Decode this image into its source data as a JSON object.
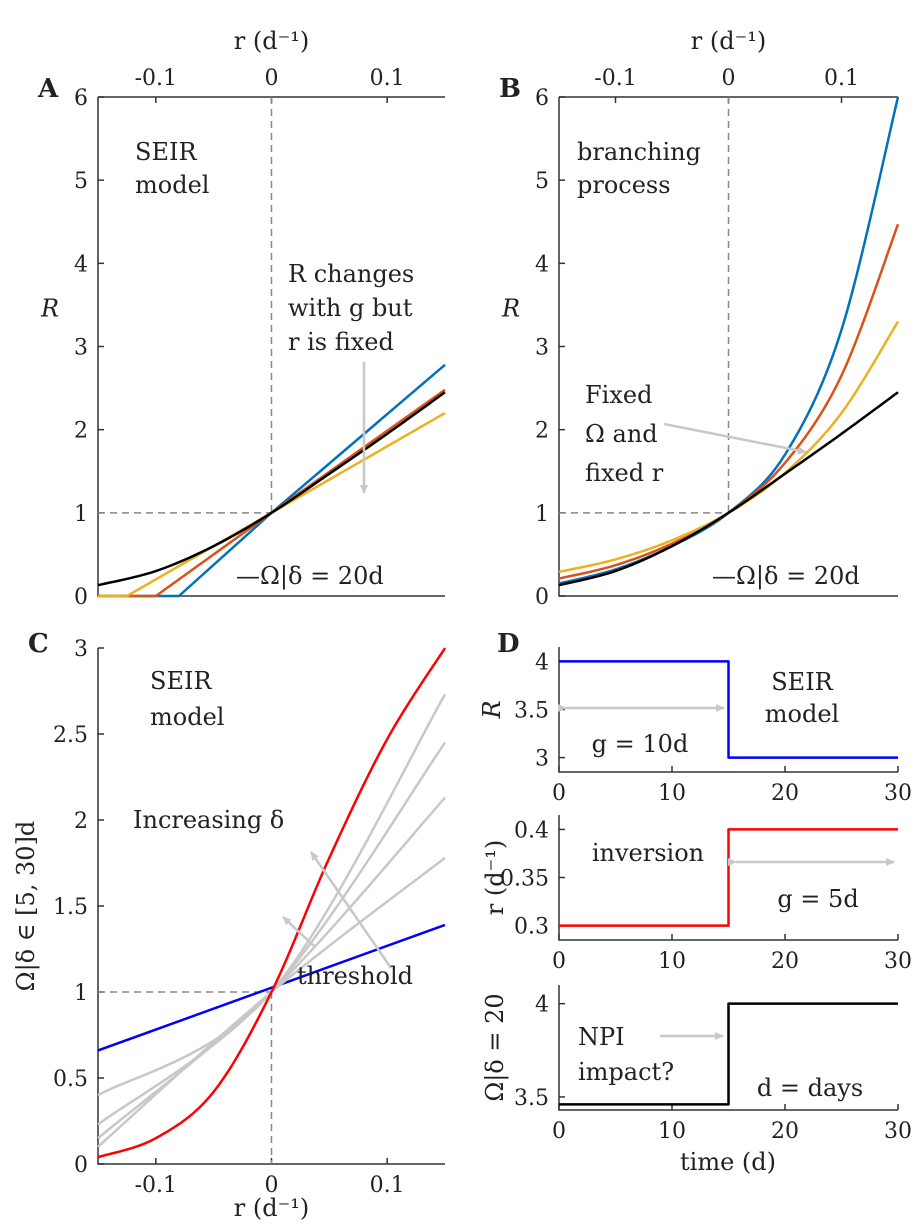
{
  "chart_data": [
    {
      "type": "line",
      "panel_label": "A",
      "top_axis_label": "r (d⁻¹)",
      "ylabel": "R",
      "xlim": [
        -0.15,
        0.15
      ],
      "ylim": [
        0,
        6
      ],
      "x_ticks": [
        "-0.1",
        "0",
        "0.1"
      ],
      "y_ticks": [
        "0",
        "1",
        "2",
        "3",
        "4",
        "5",
        "6"
      ],
      "annotations": [
        "SEIR",
        "model",
        "R changes",
        "with g but",
        "r is fixed",
        "—Ω|δ = 20d"
      ],
      "colors": [
        "#0072BD",
        "#D95319",
        "#EDB120",
        "#000000"
      ],
      "series": [
        {
          "color": "#0072BD",
          "x": [
            -0.15,
            -0.08,
            0,
            0.15
          ],
          "y": [
            0,
            0,
            1,
            2.78
          ]
        },
        {
          "color": "#D95319",
          "x": [
            -0.15,
            -0.1,
            0,
            0.15
          ],
          "y": [
            0,
            0,
            1,
            2.48
          ]
        },
        {
          "color": "#EDB120",
          "x": [
            -0.15,
            -0.125,
            0,
            0.15
          ],
          "y": [
            0,
            0,
            1,
            2.2
          ]
        },
        {
          "color": "#000000",
          "x": [
            -0.15,
            -0.1,
            -0.05,
            0,
            0.05,
            0.1,
            0.15
          ],
          "y": [
            0.13,
            0.3,
            0.6,
            1,
            1.47,
            1.95,
            2.45
          ]
        }
      ]
    },
    {
      "type": "line",
      "panel_label": "B",
      "top_axis_label": "r (d⁻¹)",
      "ylabel": "R",
      "xlim": [
        -0.15,
        0.15
      ],
      "ylim": [
        0,
        6
      ],
      "x_ticks": [
        "-0.1",
        "0",
        "0.1"
      ],
      "y_ticks": [
        "0",
        "1",
        "2",
        "3",
        "4",
        "5",
        "6"
      ],
      "annotations": [
        "branching",
        "process",
        "Fixed",
        "Ω and",
        "fixed r",
        "—Ω|δ = 20d"
      ],
      "colors": [
        "#0072BD",
        "#D95319",
        "#EDB120",
        "#000000"
      ],
      "series": [
        {
          "color": "#0072BD",
          "x": [
            -0.15,
            -0.1,
            -0.05,
            0,
            0.05,
            0.1,
            0.15
          ],
          "y": [
            0.15,
            0.32,
            0.6,
            1,
            1.7,
            3.2,
            6.0
          ]
        },
        {
          "color": "#D95319",
          "x": [
            -0.15,
            -0.1,
            -0.05,
            0,
            0.05,
            0.1,
            0.15
          ],
          "y": [
            0.21,
            0.37,
            0.63,
            1,
            1.6,
            2.65,
            4.47
          ]
        },
        {
          "color": "#EDB120",
          "x": [
            -0.15,
            -0.1,
            -0.05,
            0,
            0.05,
            0.1,
            0.15
          ],
          "y": [
            0.29,
            0.44,
            0.67,
            1,
            1.48,
            2.2,
            3.3
          ]
        },
        {
          "color": "#000000",
          "x": [
            -0.15,
            -0.1,
            -0.05,
            0,
            0.05,
            0.1,
            0.15
          ],
          "y": [
            0.13,
            0.3,
            0.6,
            1,
            1.47,
            1.95,
            2.45
          ]
        }
      ]
    },
    {
      "type": "line",
      "panel_label": "C",
      "xlabel": "r (d⁻¹)",
      "ylabel": "Ω|δ ∈ [5, 30]d",
      "xlim": [
        -0.15,
        0.15
      ],
      "ylim": [
        0,
        3
      ],
      "x_ticks": [
        "-0.1",
        "0",
        "0.1"
      ],
      "y_ticks": [
        "0",
        "0.5",
        "1",
        "1.5",
        "2",
        "2.5",
        "3"
      ],
      "annotations": [
        "SEIR",
        "model",
        "Increasing δ",
        "threshold"
      ],
      "colors": [
        "#0000FF",
        "#FF0000",
        "#C8C8C8"
      ],
      "series": [
        {
          "color": "#0000FF",
          "x": [
            -0.15,
            0.15
          ],
          "y": [
            0.66,
            1.39
          ]
        },
        {
          "color": "#C8C8C8",
          "x": [
            -0.15,
            0,
            0.15
          ],
          "y": [
            0.4,
            1,
            2.73
          ]
        },
        {
          "color": "#C8C8C8",
          "x": [
            -0.15,
            0,
            0.15
          ],
          "y": [
            0.23,
            1,
            2.45
          ]
        },
        {
          "color": "#C8C8C8",
          "x": [
            -0.15,
            0,
            0.15
          ],
          "y": [
            0.15,
            1,
            2.13
          ]
        },
        {
          "color": "#C8C8C8",
          "x": [
            -0.15,
            0,
            0.15
          ],
          "y": [
            0.1,
            1,
            1.78
          ]
        },
        {
          "color": "#FF0000",
          "x": [
            -0.15,
            -0.1,
            -0.05,
            0,
            0.05,
            0.1,
            0.15
          ],
          "y": [
            0.04,
            0.15,
            0.42,
            1,
            1.78,
            2.47,
            3.0
          ]
        }
      ]
    },
    {
      "type": "line",
      "panel_label": "D",
      "subplots": [
        {
          "ylabel": "R",
          "xlim": [
            0,
            30
          ],
          "ylim": [
            2.85,
            4.15
          ],
          "x_ticks": [
            "0",
            "10",
            "20",
            "30"
          ],
          "y_ticks": [
            "3",
            "3.5",
            "4"
          ],
          "annotations": [
            "SEIR",
            "model",
            "g = 10d"
          ],
          "color": "#0000FF",
          "x": [
            0,
            15,
            15,
            30
          ],
          "y": [
            4,
            4,
            3,
            3
          ]
        },
        {
          "ylabel": "r (d⁻¹)",
          "xlim": [
            0,
            30
          ],
          "ylim": [
            0.285,
            0.415
          ],
          "x_ticks": [
            "0",
            "10",
            "20",
            "30"
          ],
          "y_ticks": [
            "0.3",
            "0.35",
            "0.4"
          ],
          "annotations": [
            "inversion",
            "g = 5d"
          ],
          "color": "#FF0000",
          "x": [
            0,
            15,
            15,
            30
          ],
          "y": [
            0.3,
            0.3,
            0.4,
            0.4
          ]
        },
        {
          "ylabel": "Ω|δ = 20",
          "xlabel": "time (d)",
          "xlim": [
            0,
            30
          ],
          "ylim": [
            3.43,
            4.1
          ],
          "x_ticks": [
            "0",
            "10",
            "20",
            "30"
          ],
          "y_ticks": [
            "3.5",
            "4"
          ],
          "annotations": [
            "NPI",
            "impact?",
            "d = days"
          ],
          "color": "#000000",
          "x": [
            0,
            15,
            15,
            30
          ],
          "y": [
            3.46,
            3.46,
            4.0,
            4.0
          ]
        }
      ]
    }
  ]
}
